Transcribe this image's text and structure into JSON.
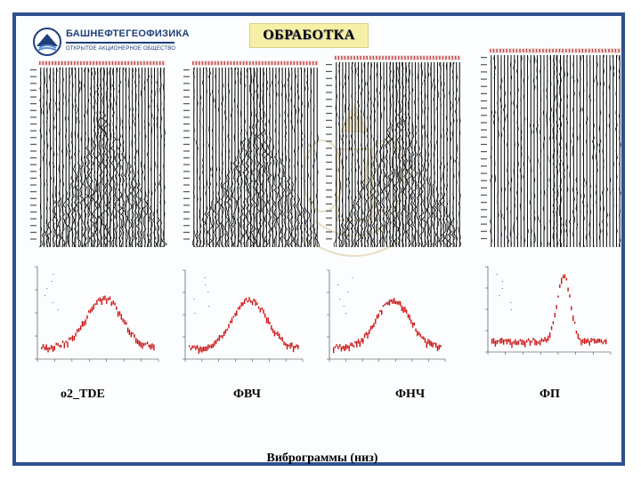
{
  "logo": {
    "name": "БАШНЕФТЕГЕОФИЗИКА",
    "subtitle": "ОТКРЫТОЕ АКЦИОНЕРНОЕ ОБЩЕСТВО"
  },
  "title": "ОБРАБОТКА",
  "panels": [
    {
      "label": "о2_TDE",
      "variant": "full"
    },
    {
      "label": "ФВЧ",
      "variant": "narrow"
    },
    {
      "label": "ФНЧ",
      "variant": "full"
    },
    {
      "label": "ФП",
      "variant": "thin"
    }
  ],
  "caption": "Виброграммы (низ)",
  "colors": {
    "frame": "#2f4f8f",
    "title_bg": "#f6f0a6",
    "spectrum": "#cc1111"
  }
}
